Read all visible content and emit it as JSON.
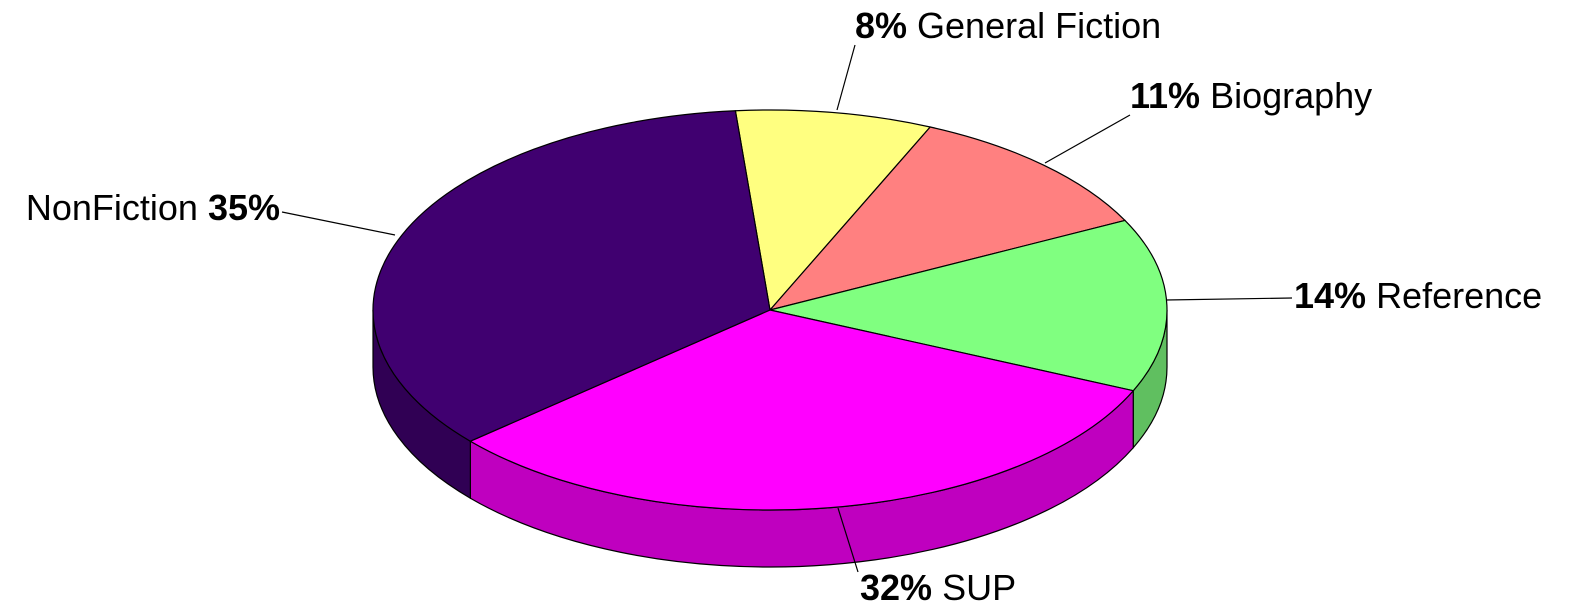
{
  "chart_data": {
    "type": "pie3d",
    "categories": [
      "General Fiction",
      "Biography",
      "Reference",
      "SUP",
      "NonFiction"
    ],
    "values": [
      8,
      11,
      14,
      32,
      35
    ],
    "value_labels": [
      "8%",
      "11%",
      "14%",
      "32%",
      "35%"
    ],
    "colors": [
      "#ffff80",
      "#ff8080",
      "#80ff80",
      "#ff00ff",
      "#400070"
    ]
  }
}
